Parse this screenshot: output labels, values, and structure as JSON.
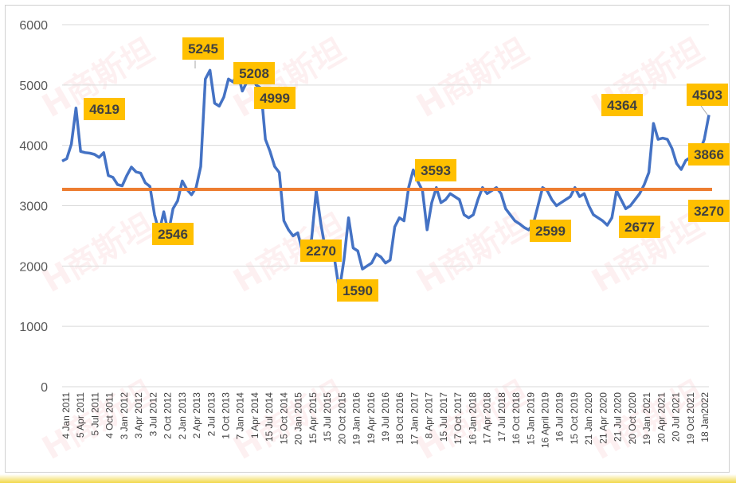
{
  "chart_data": {
    "type": "line",
    "title": "",
    "xlabel": "",
    "ylabel": "",
    "ylim": [
      0,
      6000
    ],
    "yticks": [
      0,
      1000,
      2000,
      3000,
      4000,
      5000,
      6000
    ],
    "grid": true,
    "x_tick_labels": [
      "4 Jan 2011",
      "5 Apr 2011",
      "5 Jul 2011",
      "4 Oct 2011",
      "3 Jan 2012",
      "3 Apr 2012",
      "3 Jul 2012",
      "2 Oct 2012",
      "2 Jan 2013",
      "2 Apr 2013",
      "2 Jul 2013",
      "1 Oct 2013",
      "7 Jan 2014",
      "1 Apr 2014",
      "15 Jul 2014",
      "15 Oct 2014",
      "20 Jan 2015",
      "15 Apr 2015",
      "15 Jul 2015",
      "20 Oct 2015",
      "19 Jan 2016",
      "19 Apr 2016",
      "19 Jul 2016",
      "18  Oct  2016",
      "17 Jan 2017",
      "8 Apr 2017",
      "15 Jul 2017",
      "17 Oct 2017",
      "16 Jan 2018",
      "17 Apr  2018",
      "17  Jul  2018",
      "16  Oct  2018",
      "15 Jan 2019",
      "16 April 2019",
      "16 Jul 2019",
      "15 Oct 2019",
      "21 Jan 2020",
      "21 Apr 2020",
      "21 Jul 2020",
      "20 Oct 2020",
      "19 Jan 2021",
      "20 Apr 2021",
      "20 Jul 2021",
      "19 Oct 2021",
      "18 Jan2022"
    ],
    "series": [
      {
        "values": [
          3740,
          3780,
          4020,
          4619,
          3900,
          3880,
          3870,
          3850,
          3800,
          3880,
          3500,
          3470,
          3350,
          3330,
          3500,
          3640,
          3560,
          3540,
          3380,
          3320,
          2850,
          2560,
          2900,
          2546,
          2950,
          3080,
          3410,
          3270,
          3180,
          3300,
          3650,
          5100,
          5245,
          4700,
          4650,
          4800,
          5100,
          5050,
          5200,
          4900,
          5050,
          5208,
          4999,
          4950,
          4100,
          3900,
          3650,
          3550,
          2750,
          2600,
          2500,
          2550,
          2250,
          2300,
          2450,
          3250,
          2700,
          2270,
          2300,
          2100,
          1590,
          2100,
          2800,
          2300,
          2250,
          1950,
          2000,
          2050,
          2200,
          2150,
          2050,
          2100,
          2650,
          2800,
          2750,
          3300,
          3593,
          3400,
          3250,
          2600,
          3050,
          3300,
          3050,
          3100,
          3200,
          3150,
          3100,
          2850,
          2800,
          2850,
          3100,
          3300,
          3200,
          3250,
          3300,
          3200,
          2950,
          2850,
          2750,
          2700,
          2640,
          2599,
          2700,
          3000,
          3300,
          3250,
          3100,
          3000,
          3050,
          3100,
          3150,
          3300,
          3150,
          3200,
          3000,
          2850,
          2800,
          2750,
          2677,
          2800,
          3250,
          3100,
          2950,
          3000,
          3100,
          3200,
          3350,
          3550,
          4364,
          4100,
          4120,
          4100,
          3950,
          3700,
          3600,
          3750,
          3800,
          3866,
          3900,
          4100,
          4503
        ],
        "color": "#4472c4"
      },
      {
        "values": [
          3270,
          3270
        ],
        "color": "#ed7d31"
      }
    ],
    "annotations": [
      {
        "label": "4619",
        "value": 4619
      },
      {
        "label": "2546",
        "value": 2546
      },
      {
        "label": "5245",
        "value": 5245
      },
      {
        "label": "5208",
        "value": 5208
      },
      {
        "label": "4999",
        "value": 4999
      },
      {
        "label": "2270",
        "value": 2270
      },
      {
        "label": "1590",
        "value": 1590
      },
      {
        "label": "3593",
        "value": 3593
      },
      {
        "label": "2599",
        "value": 2599
      },
      {
        "label": "2677",
        "value": 2677
      },
      {
        "label": "4364",
        "value": 4364
      },
      {
        "label": "3866",
        "value": 3866
      },
      {
        "label": "4503",
        "value": 4503
      },
      {
        "label": "3270",
        "value": 3270
      }
    ],
    "watermark": "H商斯坦"
  }
}
